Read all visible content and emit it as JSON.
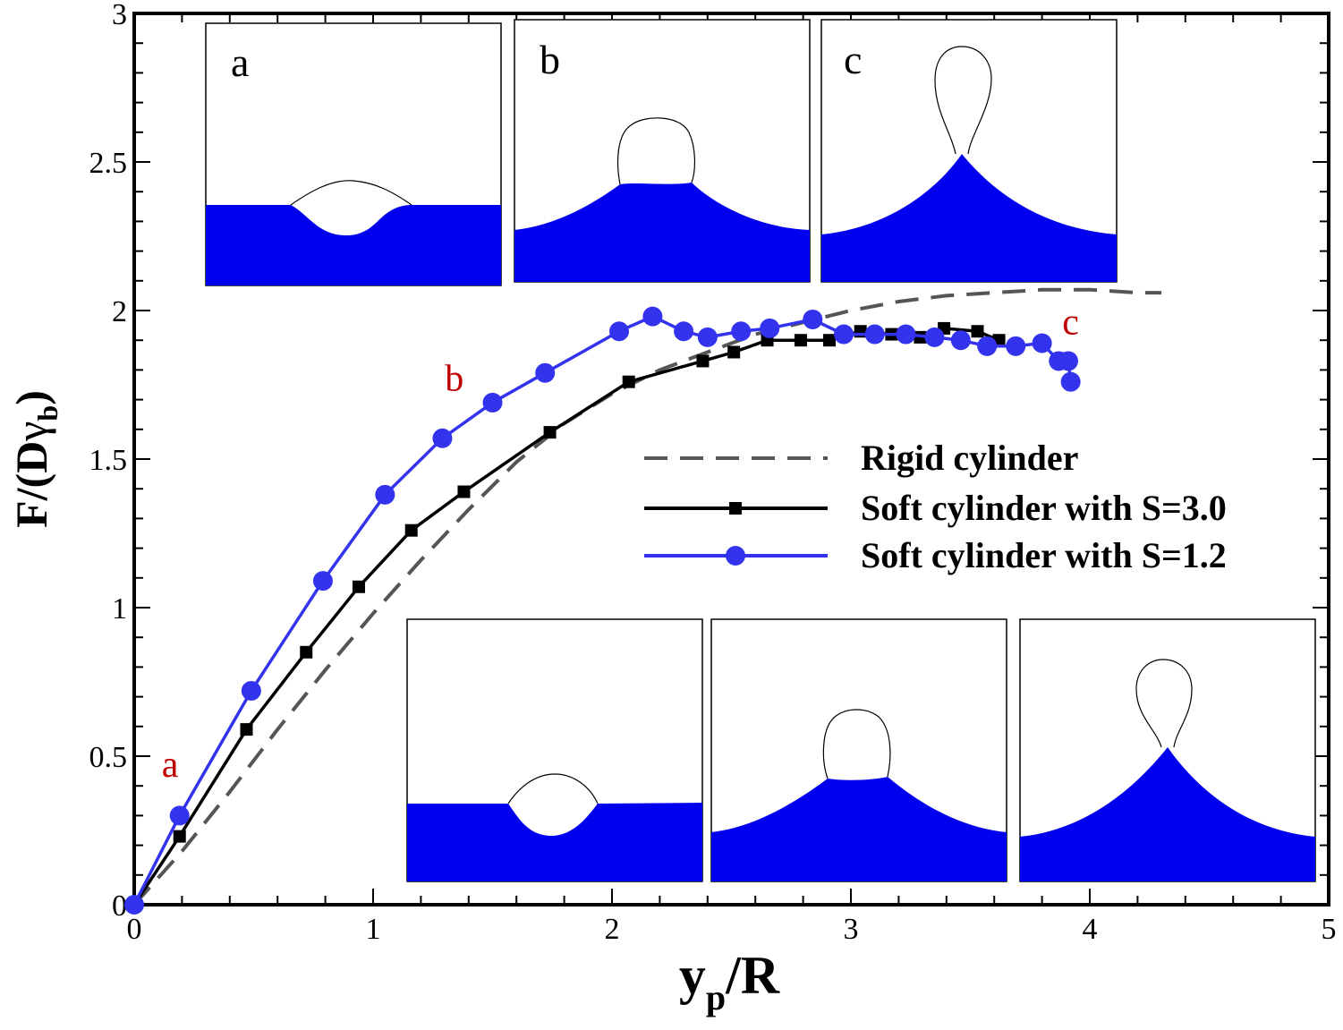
{
  "chart_data": {
    "type": "line",
    "xlabel_main": "y",
    "xlabel_sub": "p",
    "xlabel_tail": "/R",
    "ylabel_main": "F/(D",
    "ylabel_gamma": "γ",
    "ylabel_sub": "b",
    "ylabel_tail": ")",
    "xlim": [
      0,
      5
    ],
    "ylim": [
      0,
      3
    ],
    "xticks": [
      0,
      1,
      2,
      3,
      4,
      5
    ],
    "xtick_labels": [
      "0",
      "1",
      "2",
      "3",
      "4",
      "5"
    ],
    "yticks": [
      0,
      0.5,
      1,
      1.5,
      2,
      2.5,
      3
    ],
    "ytick_labels": [
      "0",
      "0.5",
      "1",
      "1.5",
      "2",
      "2.5",
      "3"
    ],
    "legend_position": "middle-right",
    "series": [
      {
        "name": "Rigid cylinder",
        "style": "dashed",
        "color": "#555555",
        "x": [
          0,
          0.2,
          0.4,
          0.6,
          0.8,
          1.0,
          1.2,
          1.4,
          1.6,
          1.8,
          2.0,
          2.2,
          2.4,
          2.6,
          2.8,
          3.0,
          3.2,
          3.4,
          3.6,
          3.8,
          4.0,
          4.2,
          4.3
        ],
        "y": [
          0,
          0.18,
          0.38,
          0.59,
          0.79,
          0.98,
          1.16,
          1.33,
          1.49,
          1.62,
          1.72,
          1.8,
          1.86,
          1.92,
          1.96,
          2.0,
          2.03,
          2.05,
          2.06,
          2.07,
          2.07,
          2.06,
          2.06
        ]
      },
      {
        "name": "Soft cylinder with S=3.0",
        "style": "solid-square",
        "color": "#000000",
        "x": [
          0,
          0.19,
          0.47,
          0.72,
          0.94,
          1.16,
          1.38,
          1.74,
          2.07,
          2.38,
          2.51,
          2.65,
          2.79,
          2.91,
          3.04,
          3.17,
          3.29,
          3.39,
          3.53,
          3.62
        ],
        "y": [
          0,
          0.23,
          0.59,
          0.85,
          1.07,
          1.26,
          1.39,
          1.59,
          1.76,
          1.83,
          1.86,
          1.9,
          1.9,
          1.9,
          1.93,
          1.92,
          1.91,
          1.94,
          1.93,
          1.9
        ]
      },
      {
        "name": "Soft cylinder with S=1.2",
        "style": "solid-circle",
        "color": "#3333ee",
        "x": [
          0,
          0.19,
          0.49,
          0.79,
          1.05,
          1.29,
          1.5,
          1.72,
          2.03,
          2.17,
          2.3,
          2.4,
          2.54,
          2.66,
          2.84,
          2.97,
          3.1,
          3.23,
          3.35,
          3.46,
          3.57,
          3.69,
          3.8,
          3.87,
          3.91,
          3.92
        ],
        "y": [
          0,
          0.3,
          0.72,
          1.09,
          1.38,
          1.57,
          1.69,
          1.79,
          1.93,
          1.98,
          1.93,
          1.91,
          1.93,
          1.94,
          1.97,
          1.92,
          1.92,
          1.92,
          1.91,
          1.9,
          1.88,
          1.88,
          1.89,
          1.83,
          1.83,
          1.76
        ]
      }
    ],
    "annotations": [
      {
        "text": "a",
        "x": 0.15,
        "y": 0.43
      },
      {
        "text": "b",
        "x": 1.34,
        "y": 1.73
      },
      {
        "text": "c",
        "x": 3.92,
        "y": 1.92
      }
    ],
    "insets_top": {
      "labels": [
        "a",
        "b",
        "c"
      ]
    },
    "insets_bottom": {
      "labels": [
        "",
        "",
        ""
      ]
    },
    "colors": {
      "fluid": "#0000ee",
      "s3": "#000000",
      "s12": "#3333ee",
      "rigid": "#555555",
      "annotation": "#c00000"
    }
  }
}
